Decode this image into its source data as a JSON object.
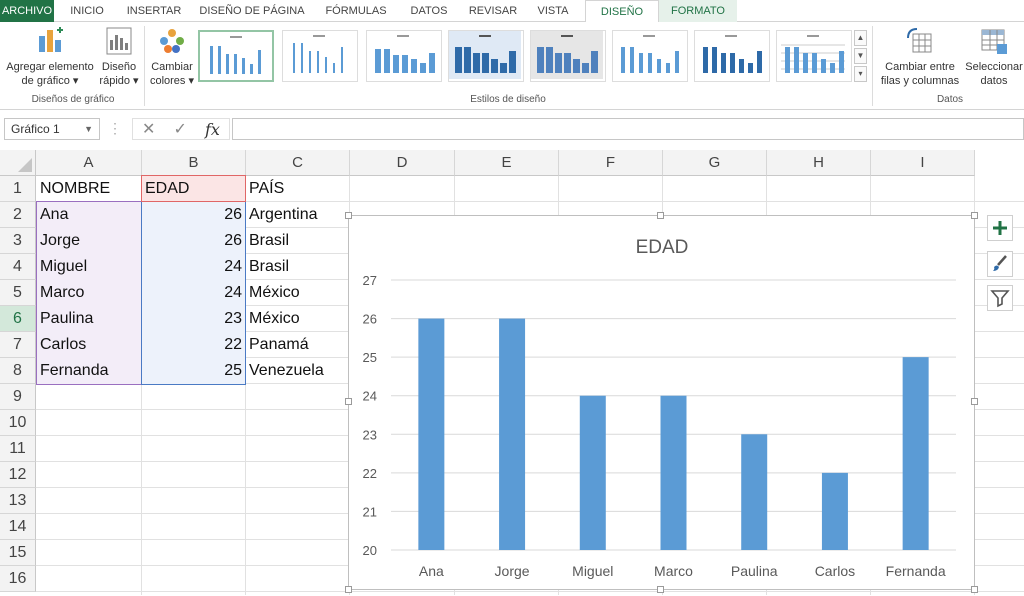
{
  "ribbon_tabs": [
    {
      "label": "ARCHIVO"
    },
    {
      "label": "INICIO"
    },
    {
      "label": "INSERTAR"
    },
    {
      "label": "DISEÑO DE PÁGINA"
    },
    {
      "label": "FÓRMULAS"
    },
    {
      "label": "DATOS"
    },
    {
      "label": "REVISAR"
    },
    {
      "label": "VISTA"
    },
    {
      "label": "DISEÑO"
    },
    {
      "label": "FORMATO"
    }
  ],
  "ribbon": {
    "add_element_l1": "Agregar elemento",
    "add_element_l2": "de gráfico ▾",
    "quick_layout_l1": "Diseño",
    "quick_layout_l2": "rápido ▾",
    "change_colors_l1": "Cambiar",
    "change_colors_l2": "colores ▾",
    "switch_rowcol_l1": "Cambiar entre",
    "switch_rowcol_l2": "filas y columnas",
    "select_data_l1": "Seleccionar",
    "select_data_l2": "datos",
    "group_layouts": "Diseños de gráfico",
    "group_styles": "Estilos de diseño",
    "group_data": "Datos"
  },
  "formula_bar": {
    "name_box": "Gráfico 1",
    "fx": "fx",
    "cancel": "✕",
    "confirm": "✓",
    "content": ""
  },
  "columns": [
    "A",
    "B",
    "C",
    "D",
    "E",
    "F",
    "G",
    "H",
    "I"
  ],
  "rows": [
    "1",
    "2",
    "3",
    "4",
    "5",
    "6",
    "7",
    "8",
    "9",
    "10",
    "11",
    "12",
    "13",
    "14",
    "15",
    "16"
  ],
  "selected_row": "6",
  "sheet": {
    "headers": [
      "NOMBRE",
      "EDAD",
      "PAÍS"
    ],
    "records": [
      {
        "nombre": "Ana",
        "edad": "26",
        "pais": "Argentina"
      },
      {
        "nombre": "Jorge",
        "edad": "26",
        "pais": "Brasil"
      },
      {
        "nombre": "Miguel",
        "edad": "24",
        "pais": "Brasil"
      },
      {
        "nombre": "Marco",
        "edad": "24",
        "pais": "México"
      },
      {
        "nombre": "Paulina",
        "edad": "23",
        "pais": "México"
      },
      {
        "nombre": "Carlos",
        "edad": "22",
        "pais": "Panamá"
      },
      {
        "nombre": "Fernanda",
        "edad": "25",
        "pais": "Venezuela"
      }
    ]
  },
  "colors": {
    "excel_green": "#217346",
    "bar": "#5b9bd5",
    "name_range_fill": "#f3edf8",
    "value_range_fill": "#edf2fb",
    "header_range_fill": "#fbe5e5"
  },
  "chart_data": {
    "type": "bar",
    "title": "EDAD",
    "categories": [
      "Ana",
      "Jorge",
      "Miguel",
      "Marco",
      "Paulina",
      "Carlos",
      "Fernanda"
    ],
    "values": [
      26,
      26,
      24,
      24,
      23,
      22,
      25
    ],
    "ylim": [
      20,
      27
    ],
    "yticks": [
      "20",
      "21",
      "22",
      "23",
      "24",
      "25",
      "26",
      "27"
    ],
    "grid": true,
    "legend": "none"
  }
}
